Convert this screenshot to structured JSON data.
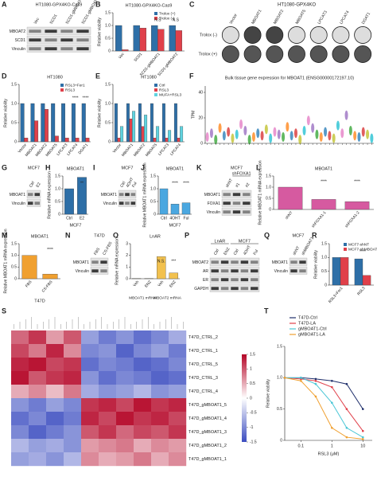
{
  "panels": [
    {
      "letter": "A",
      "type": "blot",
      "title": "HT1080-GPX4KO-Cas9",
      "groups": [
        {
          "lanes": [
            "Vec",
            "SCD1",
            "SCD1-gMBOAT1",
            "SCD1-gMBOAT2"
          ]
        }
      ],
      "rows": [
        "MBOAT2",
        "SCD1",
        "Vinculin"
      ]
    },
    {
      "letter": "B",
      "type": "bar",
      "title": "HT1080-GPX4KO-Cas9",
      "ylabel": "Relative viability",
      "categories": [
        "Vec",
        "SCD1",
        "SCD1-gMBOAT1",
        "SCD1-gMBOAT2"
      ],
      "series": [
        {
          "name": "Trolox (+)",
          "color": "#2e6fa7",
          "values": [
            1,
            1,
            1,
            1
          ]
        },
        {
          "name": "Trolox (-)",
          "color": "#e0404a",
          "values": [
            0.05,
            0.9,
            0.85,
            0.8
          ]
        }
      ],
      "ylim": [
        0,
        1.5
      ],
      "yticks": [
        0,
        0.5,
        {
          "value": 1,
          "label": "1.0"
        },
        1.5
      ],
      "annotations": [
        "N.S",
        "N.S"
      ]
    },
    {
      "letter": "C",
      "type": "plate",
      "title": "HT1080-GPX4KO",
      "lanes": [
        "Vector",
        "MBOAT1",
        "MBOAT2",
        "MBOAT5",
        "LPCAT3",
        "LPCAT4",
        "DGAT1"
      ],
      "rows": [
        "Trolox (-)",
        "Trolox (+)"
      ]
    },
    {
      "letter": "D",
      "type": "bar",
      "title": "HT1080",
      "ylabel": "Relative viability",
      "categories": [
        "Vector",
        "MBOAT1",
        "MBOAT2",
        "MBOAT5",
        "LPCAT3",
        "LPCAT4",
        "DGAT1"
      ],
      "series": [
        {
          "name": "RSL3+Fer1",
          "color": "#2e6fa7",
          "values": [
            1,
            1,
            1,
            1,
            1,
            1,
            1
          ]
        },
        {
          "name": "RSL3",
          "color": "#e0404a",
          "values": [
            0.1,
            0.55,
            0.85,
            0.15,
            0.1,
            0.1,
            0.1
          ]
        }
      ],
      "ylim": [
        0,
        1.5
      ],
      "yticks": [
        0,
        0.5,
        {
          "value": 1,
          "label": "1.0"
        },
        1.5
      ],
      "annotations": [
        "****",
        "****"
      ]
    },
    {
      "letter": "E",
      "type": "bar",
      "title": "HT1080",
      "ylabel": "Relative viability",
      "categories": [
        "Vector",
        "MBOAT1",
        "MBOAT2",
        "MBOAT5",
        "LPCAT3",
        "LPCAT4"
      ],
      "series": [
        {
          "name": "Ctrl",
          "color": "#2e6fa7",
          "values": [
            1,
            1,
            1,
            1,
            1,
            1
          ]
        },
        {
          "name": "RSL3",
          "color": "#e0404a",
          "values": [
            0.1,
            0.6,
            0.4,
            0.1,
            0.1,
            0.1
          ]
        },
        {
          "name": "MUFA+RSL3",
          "color": "#5fd3e0",
          "values": [
            0.4,
            0.8,
            0.7,
            0.4,
            0.3,
            0.4
          ]
        }
      ],
      "ylim": [
        0,
        1.5
      ],
      "yticks": [
        0,
        0.5,
        {
          "value": 1,
          "label": "1.0"
        },
        1.5
      ]
    },
    {
      "letter": "F",
      "type": "violin",
      "title": "Bulk tissue gene expression for MBOAT1 (ENSG00000172197.10)",
      "ylabel": "TPM",
      "values": [
        5,
        8,
        3,
        12,
        6,
        9,
        4,
        7,
        15,
        10,
        3,
        5,
        8,
        6,
        11,
        4,
        9,
        7,
        5,
        13,
        6,
        8,
        3,
        10,
        18,
        12,
        7,
        5,
        9,
        6,
        4,
        14,
        8,
        22,
        10,
        6,
        5,
        9,
        7,
        4
      ],
      "palette": [
        "#e377c2",
        "#9467bd",
        "#2ca02c",
        "#ff7f0e",
        "#1f77b4",
        "#d62728",
        "#bcbd22",
        "#17becf"
      ],
      "ylim": [
        0,
        45
      ],
      "yticks": [
        0,
        20,
        40
      ]
    },
    {
      "letter": "G",
      "type": "blot",
      "title": "MCF7",
      "groups": [
        {
          "lanes": [
            "Ctrl",
            "E2"
          ]
        }
      ],
      "rows": [
        "MBOAT1",
        "Vinculin"
      ]
    },
    {
      "letter": "H",
      "type": "bar",
      "title": "MBOAT1",
      "ylabel": "Relative mRNA expression",
      "xlabel": "MCF7",
      "categories": [
        "Ctrl",
        "E2"
      ],
      "values": [
        1,
        1.45
      ],
      "color": "#2e6fa7",
      "ylim": [
        0,
        1.5
      ],
      "yticks": [
        0,
        0.5,
        {
          "value": 1,
          "label": "1.0"
        },
        1.5
      ],
      "annotations": [
        "**"
      ]
    },
    {
      "letter": "I",
      "type": "blot",
      "title": "MCF7",
      "groups": [
        {
          "lanes": [
            "Ctrl",
            "4OHT",
            "Ful"
          ]
        }
      ],
      "rows": [
        "MBOAT1",
        "Vinculin"
      ]
    },
    {
      "letter": "J",
      "type": "bar",
      "title": "MBOAT1",
      "ylabel": "Relative MBOAT1 mRNA expression",
      "xlabel": "MCF7",
      "categories": [
        "Ctrl",
        "4OHT",
        "Ful"
      ],
      "values": [
        1,
        0.4,
        0.45
      ],
      "color": "#4aa7e0",
      "ylim": [
        0,
        1.5
      ],
      "yticks": [
        0,
        0.5,
        {
          "value": 1,
          "label": "1.0"
        },
        1.5
      ],
      "annotations": [
        "****",
        "****"
      ]
    },
    {
      "letter": "K",
      "type": "blot",
      "title": "MCF7",
      "groups": [
        {
          "lanes": [
            "shNT"
          ]
        },
        {
          "name": "shFOXA1",
          "lanes": [
            "#1",
            "#2"
          ]
        }
      ],
      "rows": [
        "MBOAT1",
        "FOXA1",
        "Vinculin"
      ]
    },
    {
      "letter": "L",
      "type": "bar",
      "title": "MBOAT1",
      "ylabel": "Relative MBOAT1 mRNA expression",
      "categories": [
        "shNT",
        "shFOXA1-1",
        "shFOXA1-2"
      ],
      "values": [
        1,
        0.45,
        0.35
      ],
      "color": "#d65aa0",
      "ylim": [
        0,
        1.5
      ],
      "yticks": [
        0,
        0.5,
        {
          "value": 1,
          "label": "1.0"
        },
        1.5
      ],
      "annotations": [
        "****",
        "****"
      ]
    },
    {
      "letter": "M",
      "type": "bar",
      "title": "MBOAT1",
      "ylabel": "Relative MBOAT1 mRNA expression",
      "xlabel": "T47D",
      "categories": [
        "FBS",
        "CS-FBS"
      ],
      "values": [
        1,
        0.2
      ],
      "color": "#f0a030",
      "ylim": [
        0,
        1.5
      ],
      "yticks": [
        0,
        0.5,
        {
          "value": 1,
          "label": "1.0"
        },
        1.5
      ],
      "annotations": [
        "****"
      ]
    },
    {
      "letter": "N",
      "type": "blot",
      "title": "T47D",
      "groups": [
        {
          "lanes": [
            "FBS",
            "CS-FBS"
          ]
        }
      ],
      "rows": [
        "MBOAT1",
        "Vinculin"
      ]
    },
    {
      "letter": "O",
      "type": "bar",
      "title": "LnAR",
      "ylabel": "Relative mRNA expression",
      "categories": [
        "Veh",
        "ENZ",
        "Veh",
        "ENZ"
      ],
      "groups": [
        "MBOAT1 mRNA",
        "MBOAT2 mRNA"
      ],
      "values": [
        0.02,
        0.02,
        1.9,
        0.5
      ],
      "color": "#f2c14e",
      "ylim": [
        0,
        3
      ],
      "yticks": [
        0,
        1,
        2,
        3
      ],
      "annotations": [
        "N.S.",
        "***"
      ]
    },
    {
      "letter": "P",
      "type": "blot",
      "groups": [
        {
          "name": "LnAR",
          "lanes": [
            "Ctrl",
            "ENZ"
          ]
        },
        {
          "name": "MCF7",
          "lanes": [
            "Ctrl",
            "4OHT",
            "Ful"
          ]
        }
      ],
      "rows": [
        "MBOAT2",
        "AR",
        "ER",
        "GAPDH"
      ]
    },
    {
      "letter": "Q",
      "type": "blot",
      "title": "MCF7",
      "groups": [
        {
          "lanes": [
            "shNT",
            "shMBOAT1"
          ]
        }
      ],
      "rows": [
        "MBOAT1",
        "Vinculin"
      ]
    },
    {
      "letter": "R",
      "type": "bar",
      "ylabel": "Relative viability",
      "categories": [
        "RSL3+Fer1",
        "RSL3"
      ],
      "series": [
        {
          "name": "MCF7-shNT",
          "color": "#2e6fa7",
          "values": [
            1,
            0.95
          ]
        },
        {
          "name": "MCF7-shMBOAT1",
          "color": "#e0404a",
          "values": [
            1,
            0.35
          ]
        }
      ],
      "ylim": [
        0,
        1.5
      ],
      "yticks": [
        0,
        0.5,
        {
          "value": 1,
          "label": "1.0"
        },
        1.5
      ],
      "annotations": [
        "****"
      ]
    },
    {
      "letter": "S",
      "type": "heatmap",
      "rows": [
        "T47D_CTRL_2",
        "T47D_CTRL_1",
        "T47D_CTRL_5",
        "T47D_CTRL_3",
        "T47D_CTRL_4",
        "T47D_gMBOAT1_5",
        "T47D_gMBOAT1_4",
        "T47D_gMBOAT1_3",
        "T47D_gMBOAT1_2",
        "T47D_gMBOAT1_1"
      ],
      "matrix": [
        [
          0.9,
          1.2,
          0.6,
          1.0,
          -0.8,
          -1.1,
          -0.9,
          -1.2,
          -1.0,
          -0.7
        ],
        [
          1.1,
          0.8,
          1.3,
          0.7,
          -1.0,
          -0.9,
          -1.3,
          -1.0,
          -0.8,
          -1.1
        ],
        [
          1.3,
          1.4,
          1.1,
          1.2,
          -1.2,
          -1.0,
          -1.1,
          -1.3,
          -1.2,
          -1.0
        ],
        [
          1.4,
          1.0,
          1.2,
          1.3,
          -0.9,
          -1.2,
          -1.0,
          -1.1,
          -1.3,
          -1.2
        ],
        [
          0.5,
          0.7,
          0.4,
          0.8,
          -0.7,
          -0.9,
          -0.8,
          -0.6,
          -0.9,
          -0.8
        ],
        [
          -0.9,
          -1.1,
          -0.8,
          -1.0,
          1.2,
          1.3,
          1.1,
          1.4,
          1.2,
          1.3
        ],
        [
          -1.2,
          -1.0,
          -1.3,
          -1.1,
          1.3,
          1.1,
          1.4,
          1.2,
          1.3,
          1.1
        ],
        [
          -1.0,
          -1.3,
          -1.1,
          -0.9,
          1.0,
          1.2,
          0.9,
          1.1,
          1.0,
          1.2
        ],
        [
          -0.6,
          -0.8,
          -0.7,
          -0.9,
          0.6,
          0.7,
          0.8,
          0.5,
          0.7,
          0.6
        ],
        [
          -0.8,
          -0.7,
          -0.9,
          -0.6,
          0.7,
          0.5,
          0.6,
          0.8,
          0.5,
          0.7
        ]
      ],
      "clim": [
        -1.5,
        1.5
      ],
      "colors": [
        "#3b4cc0",
        "#ffffff",
        "#b40426"
      ],
      "ticks": [
        1.5,
        1,
        0.5,
        0,
        -0.5,
        -1,
        -1.5
      ]
    },
    {
      "letter": "T",
      "type": "line",
      "ylabel": "Relative viability",
      "xlabel": "RSL3 (μM)",
      "log_x": true,
      "x": [
        0.03,
        0.1,
        0.3,
        1,
        3,
        10
      ],
      "xlim": [
        0.03,
        20
      ],
      "xticks": [
        0.1,
        1,
        10
      ],
      "ylim": [
        0,
        1.5
      ],
      "yticks": [
        0,
        0.5,
        {
          "value": 1,
          "label": "1.0"
        },
        1.5
      ],
      "series": [
        {
          "name": "T47D-Ctrl",
          "color": "#1f2f6b",
          "values": [
            1,
            1,
            0.98,
            0.95,
            0.9,
            0.5
          ]
        },
        {
          "name": "T47D-LA",
          "color": "#e0404a",
          "values": [
            1,
            0.98,
            0.95,
            0.85,
            0.5,
            0.15
          ]
        },
        {
          "name": "gMBOAT1-Ctrl",
          "color": "#4ac6d6",
          "values": [
            1,
            1,
            0.9,
            0.6,
            0.2,
            0.05
          ]
        },
        {
          "name": "gMBOAT1-LA",
          "color": "#f0a030",
          "values": [
            1,
            0.95,
            0.7,
            0.2,
            0.05,
            0.02
          ]
        }
      ]
    }
  ]
}
